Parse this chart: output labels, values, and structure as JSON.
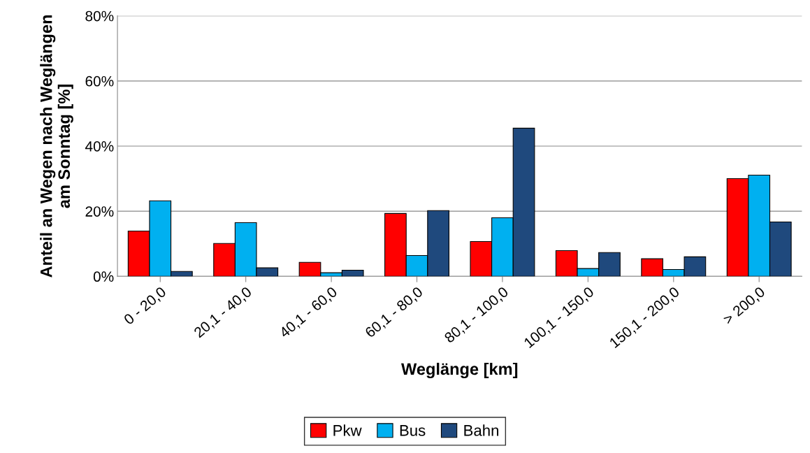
{
  "chart_data": {
    "type": "bar",
    "xlabel": "Weglänge [km]",
    "ylabel": "Anteil an Wegen nach Weglängen\nam Sonntag [%]",
    "categories": [
      "0 - 20,0",
      "20,1 - 40,0",
      "40,1 - 60,0",
      "60,1 - 80,0",
      "80,1 - 100,0",
      "100,1 - 150,0",
      "150,1 - 200,0",
      "> 200,0"
    ],
    "series": [
      {
        "name": "Pkw",
        "color": "#ff0000",
        "values": [
          13.9,
          10.1,
          4.3,
          19.3,
          10.7,
          7.9,
          5.4,
          30.0
        ]
      },
      {
        "name": "Bus",
        "color": "#00b0f0",
        "values": [
          23.2,
          16.5,
          1.1,
          6.4,
          18.0,
          2.4,
          2.1,
          31.1
        ]
      },
      {
        "name": "Bahn",
        "color": "#1f497d",
        "values": [
          1.5,
          2.6,
          1.9,
          20.2,
          45.5,
          7.3,
          6.0,
          16.7
        ]
      }
    ],
    "ylim": [
      0,
      80
    ],
    "yticks": [
      {
        "value": 0,
        "label": "0%"
      },
      {
        "value": 20,
        "label": "20%"
      },
      {
        "value": 40,
        "label": "40%"
      },
      {
        "value": 60,
        "label": "60%"
      },
      {
        "value": 80,
        "label": "80%"
      }
    ],
    "grid": "y",
    "legend": "bottom"
  }
}
